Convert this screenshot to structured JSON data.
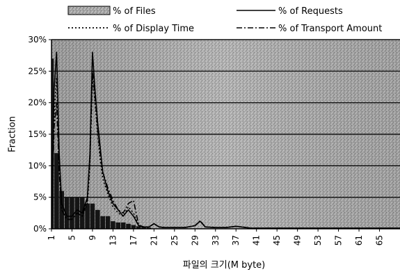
{
  "chart_data": {
    "type": "line",
    "xlabel": "파일의 크기(M byte)",
    "ylabel": "Fraction",
    "xlim": [
      1,
      69
    ],
    "ylim": [
      0,
      30
    ],
    "y_ticks": [
      "0%",
      "5%",
      "10%",
      "15%",
      "20%",
      "25%",
      "30%"
    ],
    "x_ticks": [
      "1",
      "5",
      "9",
      "13",
      "17",
      "21",
      "25",
      "29",
      "33",
      "37",
      "41",
      "45",
      "49",
      "53",
      "57",
      "61",
      "65"
    ],
    "grid": "horizontal",
    "legend_position": "top",
    "series": [
      {
        "name": "% of Files",
        "style": "bar",
        "x": [
          1,
          2,
          3,
          4,
          5,
          6,
          7,
          8,
          9,
          10,
          11,
          12,
          13,
          14,
          15,
          16,
          17,
          18,
          19,
          20
        ],
        "values": [
          27,
          12,
          6,
          5,
          5,
          5,
          5,
          4,
          4,
          3,
          2,
          2,
          1.2,
          1,
          1,
          0.8,
          0.6,
          0.4,
          0.3,
          0.2
        ]
      },
      {
        "name": "% of Requests",
        "style": "solid",
        "x": [
          1,
          1.5,
          2,
          2.5,
          3,
          4,
          5,
          6,
          7,
          8,
          8.5,
          9,
          9.5,
          10,
          10.5,
          11,
          12,
          13,
          14,
          15,
          16,
          17,
          18,
          19,
          20,
          21,
          22,
          23,
          25,
          27,
          29,
          30,
          31,
          33,
          35,
          37,
          40,
          45,
          50,
          55,
          60,
          65,
          69
        ],
        "values": [
          0,
          22,
          28,
          12,
          4,
          2,
          2,
          3,
          2.5,
          5,
          12,
          28,
          22,
          17,
          13,
          9,
          6,
          4,
          3,
          2,
          3,
          2,
          0.5,
          0.3,
          0.3,
          0.8,
          0.3,
          0.2,
          0.2,
          0.2,
          0.5,
          1.2,
          0.3,
          0.2,
          0.2,
          0.4,
          0.1,
          0.1,
          0.1,
          0.1,
          0.1,
          0.1,
          0.1
        ]
      },
      {
        "name": "% of Display Time",
        "style": "dotted",
        "x": [
          1,
          1.5,
          2,
          2.5,
          3,
          4,
          5,
          6,
          7,
          8,
          8.5,
          9,
          9.5,
          10,
          10.5,
          11,
          12,
          13,
          14,
          15,
          16,
          17,
          18,
          19,
          20,
          21,
          22,
          23,
          25,
          27,
          29,
          30,
          31,
          33,
          35,
          37,
          40,
          45,
          50,
          55,
          60,
          65,
          69
        ],
        "values": [
          0,
          18,
          24,
          10,
          3,
          1.5,
          1.5,
          2.5,
          2,
          4,
          10,
          24,
          20,
          15,
          11,
          8,
          5.5,
          3.5,
          2.5,
          2,
          3.5,
          2.5,
          0.5,
          0.3,
          0.3,
          0.8,
          0.3,
          0.2,
          0.2,
          0.2,
          0.5,
          1.2,
          0.3,
          0.2,
          0.2,
          0.4,
          0.1,
          0.1,
          0.1,
          0.1,
          0.1,
          0.1,
          0.1
        ]
      },
      {
        "name": "% of Transport Amount",
        "style": "dashdot",
        "x": [
          1,
          1.5,
          2,
          2.5,
          3,
          4,
          5,
          6,
          7,
          8,
          8.5,
          9,
          9.5,
          10,
          10.5,
          11,
          12,
          13,
          14,
          15,
          16,
          17,
          18,
          19,
          20,
          21,
          22,
          23,
          25,
          27,
          29,
          30,
          31,
          33,
          35,
          37,
          40,
          45,
          50,
          55,
          60,
          65,
          69
        ],
        "values": [
          0,
          16,
          20,
          9,
          3,
          1.5,
          1.5,
          2.5,
          2,
          4.5,
          11,
          25,
          21,
          16,
          12,
          9,
          6.5,
          4.5,
          3,
          2.5,
          4,
          4.5,
          0.6,
          0.3,
          0.3,
          0.8,
          0.3,
          0.2,
          0.2,
          0.2,
          0.5,
          1.3,
          0.3,
          0.2,
          0.2,
          0.4,
          0.1,
          0.1,
          0.1,
          0.1,
          0.1,
          0.1,
          0.1
        ]
      }
    ]
  }
}
